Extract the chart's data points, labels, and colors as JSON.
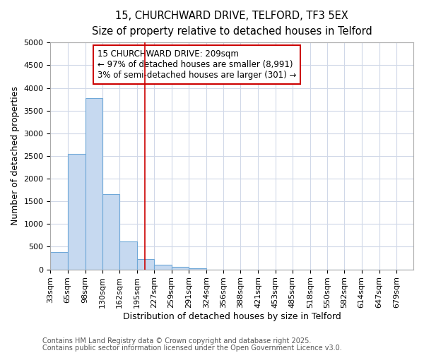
{
  "title1": "15, CHURCHWARD DRIVE, TELFORD, TF3 5EX",
  "title2": "Size of property relative to detached houses in Telford",
  "xlabel": "Distribution of detached houses by size in Telford",
  "ylabel": "Number of detached properties",
  "categories": [
    "33sqm",
    "65sqm",
    "98sqm",
    "130sqm",
    "162sqm",
    "195sqm",
    "227sqm",
    "259sqm",
    "291sqm",
    "324sqm",
    "356sqm",
    "388sqm",
    "421sqm",
    "453sqm",
    "485sqm",
    "518sqm",
    "550sqm",
    "582sqm",
    "614sqm",
    "647sqm",
    "679sqm"
  ],
  "bar_values": [
    380,
    2540,
    3780,
    1660,
    620,
    230,
    100,
    55,
    30,
    0,
    0,
    0,
    0,
    0,
    0,
    0,
    0,
    0,
    0,
    0,
    0
  ],
  "bin_edges": [
    33,
    65,
    98,
    130,
    162,
    195,
    227,
    259,
    291,
    324,
    356,
    388,
    421,
    453,
    485,
    518,
    550,
    582,
    614,
    647,
    679,
    711
  ],
  "bar_color": "#c6d9f0",
  "bar_edge_color": "#6fa8d8",
  "vline_x": 209,
  "vline_color": "#cc0000",
  "ylim": [
    0,
    5000
  ],
  "yticks": [
    0,
    500,
    1000,
    1500,
    2000,
    2500,
    3000,
    3500,
    4000,
    4500,
    5000
  ],
  "annotation_title": "15 CHURCHWARD DRIVE: 209sqm",
  "annotation_line1": "← 97% of detached houses are smaller (8,991)",
  "annotation_line2": "3% of semi-detached houses are larger (301) →",
  "annotation_box_color": "#ffffff",
  "annotation_border_color": "#cc0000",
  "footnote1": "Contains HM Land Registry data © Crown copyright and database right 2025.",
  "footnote2": "Contains public sector information licensed under the Open Government Licence v3.0.",
  "title_fontsize": 10.5,
  "subtitle_fontsize": 9.5,
  "axis_label_fontsize": 9,
  "tick_fontsize": 8,
  "annotation_fontsize": 8.5,
  "footnote_fontsize": 7,
  "background_color": "#ffffff",
  "plot_bg_color": "#ffffff",
  "grid_color": "#d0d8e8"
}
